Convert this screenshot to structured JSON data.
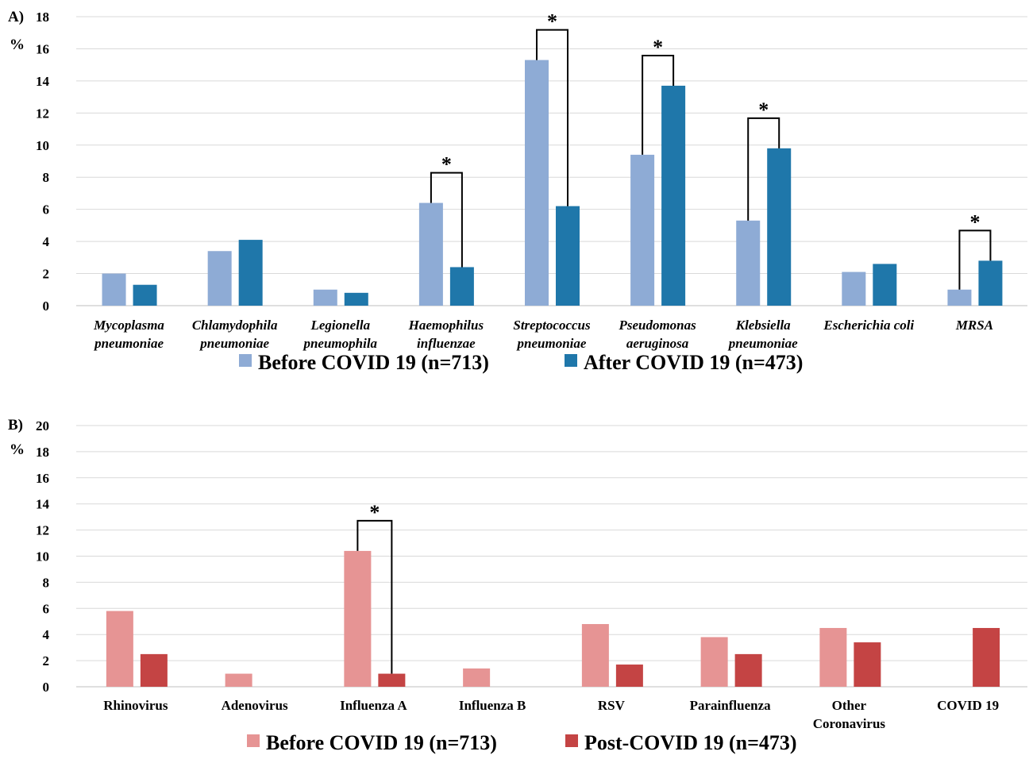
{
  "chart_data": [
    {
      "type": "bar",
      "panel_label": "A)",
      "ylabel": "%",
      "ylim": [
        0,
        18
      ],
      "yticks": [
        0,
        2,
        4,
        6,
        8,
        10,
        12,
        14,
        16,
        18
      ],
      "grid": true,
      "legend_position": "bottom",
      "italic_categories": true,
      "categories": [
        [
          "Mycoplasma",
          "pneumoniae"
        ],
        [
          "Chlamydophila",
          "pneumoniae"
        ],
        [
          "Legionella",
          "pneumophila"
        ],
        [
          "Haemophilus",
          "influenzae"
        ],
        [
          "Streptococcus",
          "pneumoniae"
        ],
        [
          "Pseudomonas",
          "aeruginosa"
        ],
        [
          "Klebsiella",
          "pneumoniae"
        ],
        [
          "Escherichia coli"
        ],
        [
          "MRSA"
        ]
      ],
      "series": [
        {
          "name": "Before COVID  19 (n=713)",
          "color": "#8eabd5",
          "values": [
            2.0,
            3.4,
            1.0,
            6.4,
            15.3,
            9.4,
            5.3,
            2.1,
            1.0
          ]
        },
        {
          "name": "After COVID 19 (n=473)",
          "color": "#1f77aa",
          "values": [
            1.3,
            4.1,
            0.8,
            2.4,
            6.2,
            13.7,
            9.8,
            2.6,
            2.8
          ]
        }
      ],
      "significance": [
        {
          "category_index": 3,
          "marker": "*"
        },
        {
          "category_index": 4,
          "marker": "*"
        },
        {
          "category_index": 5,
          "marker": "*"
        },
        {
          "category_index": 6,
          "marker": "*"
        },
        {
          "category_index": 8,
          "marker": "*"
        }
      ]
    },
    {
      "type": "bar",
      "panel_label": "B)",
      "ylabel": "%",
      "ylim": [
        0,
        20
      ],
      "yticks": [
        0,
        2,
        4,
        6,
        8,
        10,
        12,
        14,
        16,
        18,
        20
      ],
      "grid": true,
      "legend_position": "bottom",
      "italic_categories": false,
      "categories": [
        [
          "Rhinovirus"
        ],
        [
          "Adenovirus"
        ],
        [
          "Influenza A"
        ],
        [
          "Influenza B"
        ],
        [
          "RSV"
        ],
        [
          "Parainfluenza"
        ],
        [
          "Other",
          "Coronavirus"
        ],
        [
          "COVID 19"
        ]
      ],
      "series": [
        {
          "name": "Before COVID 19 (n=713)",
          "color": "#e69494",
          "values": [
            5.8,
            1.0,
            10.4,
            1.4,
            4.8,
            3.8,
            4.5,
            0
          ]
        },
        {
          "name": "Post-COVID 19 (n=473)",
          "color": "#c44444",
          "values": [
            2.5,
            0,
            1.0,
            0,
            1.7,
            2.5,
            3.4,
            4.5
          ]
        }
      ],
      "significance": [
        {
          "category_index": 2,
          "marker": "*"
        }
      ]
    }
  ]
}
